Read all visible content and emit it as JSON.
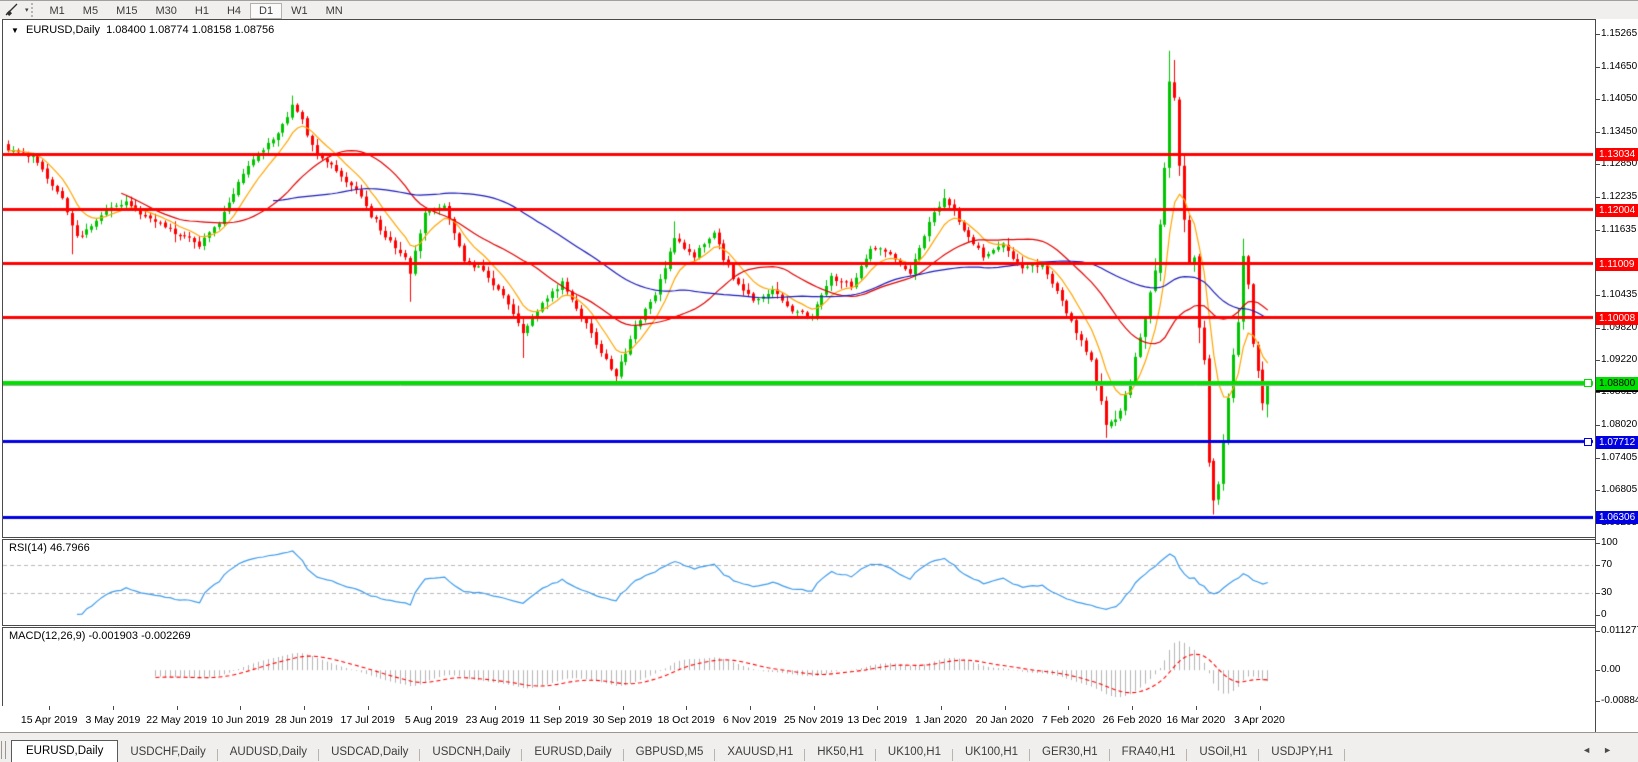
{
  "toolbar": {
    "draw_tool": "trendline-draw-tool",
    "dropdown_caret": "▾",
    "timeframes": [
      "M1",
      "M5",
      "M15",
      "M30",
      "H1",
      "H4",
      "D1",
      "W1",
      "MN"
    ],
    "active_timeframe": "D1"
  },
  "chart": {
    "title_symbol": "EURUSD,Daily",
    "title_ohlc": "1.08400 1.08774 1.08158 1.08756",
    "title_caret": "▼",
    "rsi_label": "RSI(14) 46.7966",
    "macd_label": "MACD(12,26,9) -0.001903 -0.002269"
  },
  "tabs": {
    "items": [
      "EURUSD,Daily",
      "USDCHF,Daily",
      "AUDUSD,Daily",
      "USDCAD,Daily",
      "USDCNH,Daily",
      "EURUSD,Daily",
      "GBPUSD,M5",
      "XAUUSD,H1",
      "HK50,H1",
      "UK100,H1",
      "UK100,H1",
      "GER30,H1",
      "FRA40,H1",
      "USOil,H1",
      "USDJPY,H1"
    ],
    "active_index": 0,
    "scroll_left": "◄",
    "scroll_right": "►"
  },
  "chart_data": {
    "type": "candlestick",
    "symbol": "EURUSD",
    "period": "Daily",
    "last_bar": {
      "open": 1.084,
      "high": 1.08774,
      "low": 1.08158,
      "close": 1.08756
    },
    "current_price": {
      "value": 1.08756,
      "line_color": "#a8a8a8",
      "label_bg": "#000000",
      "label_fg": "#ffffff"
    },
    "price_range": [
      1.0598,
      1.1552
    ],
    "price_axis_ticks": [
      1.15265,
      1.1465,
      1.1405,
      1.1345,
      1.1285,
      1.12235,
      1.11635,
      1.10435,
      1.0982,
      1.0922,
      1.0862,
      1.0802,
      1.07405,
      1.06805,
      1.06205
    ],
    "x_labels": [
      "15 Apr 2019",
      "3 May 2019",
      "22 May 2019",
      "10 Jun 2019",
      "28 Jun 2019",
      "17 Jul 2019",
      "5 Aug 2019",
      "23 Aug 2019",
      "11 Sep 2019",
      "30 Sep 2019",
      "18 Oct 2019",
      "6 Nov 2019",
      "25 Nov 2019",
      "13 Dec 2019",
      "1 Jan 2020",
      "20 Jan 2020",
      "7 Feb 2020",
      "26 Feb 2020",
      "16 Mar 2020",
      "3 Apr 2020"
    ],
    "x_label_first_bar": 8,
    "x_label_step": 13,
    "bars_total": 258,
    "bar_spacing_px": 4.9,
    "candle_up_color": "#00c400",
    "candle_down_color": "#ff0000",
    "horizontal_lines": [
      {
        "price": 1.13034,
        "color": "#ff0000",
        "width": 3,
        "label_fg": "#ffffff",
        "marker": false
      },
      {
        "price": 1.12004,
        "color": "#ff0000",
        "width": 3,
        "label_fg": "#ffffff",
        "marker": false
      },
      {
        "price": 1.11009,
        "color": "#ff0000",
        "width": 3,
        "label_fg": "#ffffff",
        "marker": false
      },
      {
        "price": 1.10008,
        "color": "#ff0000",
        "width": 3,
        "label_fg": "#ffffff",
        "marker": false
      },
      {
        "price": 1.07712,
        "color": "#0000e0",
        "width": 3,
        "label_fg": "#ffffff",
        "marker": true
      },
      {
        "price": 1.06306,
        "color": "#0000e0",
        "width": 3,
        "label_fg": "#ffffff",
        "marker": false
      },
      {
        "price": 1.088,
        "color": "#00e000",
        "width": 4,
        "label_fg": "#000000",
        "marker": true
      }
    ],
    "moving_averages": [
      {
        "kind": "ema",
        "period": 8,
        "color": "#ffa500"
      },
      {
        "kind": "sma",
        "period": 24,
        "color": "#e00000"
      },
      {
        "kind": "sma",
        "period": 55,
        "color": "#1a1ab8"
      }
    ],
    "rsi": {
      "period": 14,
      "current": 46.7966,
      "levels": [
        70,
        30
      ],
      "scale_ticks": [
        100,
        70,
        30,
        0
      ],
      "range": [
        0,
        100
      ],
      "color": "#3e9beb",
      "level_color": "#b8b8b8"
    },
    "macd": {
      "fast": 12,
      "slow": 26,
      "signal": 9,
      "current_macd": -0.001903,
      "current_signal": -0.002269,
      "scale_ticks": [
        "0.011277",
        "0.00",
        "-0.008845"
      ],
      "range": [
        -0.008845,
        0.011277
      ],
      "histogram_color": "#b4b4b4",
      "signal_color": "#ff0000"
    },
    "anchors": [
      [
        0,
        1.131
      ],
      [
        5,
        1.13
      ],
      [
        8,
        1.1258
      ],
      [
        11,
        1.1222
      ],
      [
        14,
        1.1152
      ],
      [
        17,
        1.117
      ],
      [
        20,
        1.1198
      ],
      [
        24,
        1.1216
      ],
      [
        28,
        1.1188
      ],
      [
        32,
        1.1168
      ],
      [
        36,
        1.1152
      ],
      [
        39,
        1.1132
      ],
      [
        43,
        1.1175
      ],
      [
        47,
        1.1252
      ],
      [
        51,
        1.1305
      ],
      [
        55,
        1.1342
      ],
      [
        58,
        1.1395
      ],
      [
        60,
        1.1368
      ],
      [
        63,
        1.1302
      ],
      [
        67,
        1.1272
      ],
      [
        72,
        1.1225
      ],
      [
        76,
        1.1162
      ],
      [
        80,
        1.112
      ],
      [
        82,
        1.1082
      ],
      [
        85,
        1.1195
      ],
      [
        89,
        1.1208
      ],
      [
        93,
        1.1105
      ],
      [
        97,
        1.1088
      ],
      [
        101,
        1.1042
      ],
      [
        105,
        1.0972
      ],
      [
        109,
        1.1028
      ],
      [
        113,
        1.1068
      ],
      [
        117,
        1.1002
      ],
      [
        121,
        1.0935
      ],
      [
        124,
        1.0892
      ],
      [
        128,
        1.0985
      ],
      [
        132,
        1.1042
      ],
      [
        136,
        1.1148
      ],
      [
        140,
        1.1112
      ],
      [
        144,
        1.1158
      ],
      [
        148,
        1.1072
      ],
      [
        152,
        1.1032
      ],
      [
        156,
        1.1052
      ],
      [
        160,
        1.1012
      ],
      [
        164,
        1.1002
      ],
      [
        168,
        1.1078
      ],
      [
        172,
        1.1058
      ],
      [
        176,
        1.1128
      ],
      [
        180,
        1.1118
      ],
      [
        184,
        1.1082
      ],
      [
        188,
        1.1178
      ],
      [
        191,
        1.1222
      ],
      [
        195,
        1.1162
      ],
      [
        199,
        1.1112
      ],
      [
        203,
        1.1138
      ],
      [
        207,
        1.1092
      ],
      [
        211,
        1.1098
      ],
      [
        215,
        1.1032
      ],
      [
        218,
        1.0972
      ],
      [
        221,
        1.0922
      ],
      [
        224,
        1.0802
      ],
      [
        226,
        1.0812
      ],
      [
        228,
        1.0858
      ],
      [
        230,
        1.0928
      ],
      [
        232,
        1.0998
      ],
      [
        234,
        1.1088
      ],
      [
        236,
        1.1278
      ],
      [
        237,
        1.1438
      ],
      [
        238,
        1.1408
      ],
      [
        239,
        1.1282
      ],
      [
        240,
        1.1182
      ],
      [
        241,
        1.1102
      ],
      [
        242,
        1.1112
      ],
      [
        243,
        1.0982
      ],
      [
        244,
        1.0922
      ],
      [
        245,
        1.0732
      ],
      [
        246,
        1.0662
      ],
      [
        247,
        1.0692
      ],
      [
        248,
        1.0772
      ],
      [
        249,
        1.0852
      ],
      [
        250,
        1.0932
      ],
      [
        251,
        1.0992
      ],
      [
        252,
        1.1115
      ],
      [
        253,
        1.1062
      ],
      [
        254,
        1.0952
      ],
      [
        255,
        1.0902
      ],
      [
        256,
        1.0842
      ],
      [
        257,
        1.08756
      ]
    ],
    "extremes": [
      {
        "bar": 13,
        "low": 1.1118
      },
      {
        "bar": 58,
        "high": 1.1412
      },
      {
        "bar": 82,
        "low": 1.103
      },
      {
        "bar": 105,
        "low": 1.0926
      },
      {
        "bar": 124,
        "low": 1.0879
      },
      {
        "bar": 136,
        "high": 1.1179
      },
      {
        "bar": 191,
        "high": 1.1239
      },
      {
        "bar": 224,
        "low": 1.0778
      },
      {
        "bar": 237,
        "high": 1.1495
      },
      {
        "bar": 238,
        "high": 1.1478
      },
      {
        "bar": 246,
        "low": 1.0636
      },
      {
        "bar": 252,
        "high": 1.1147
      }
    ]
  }
}
